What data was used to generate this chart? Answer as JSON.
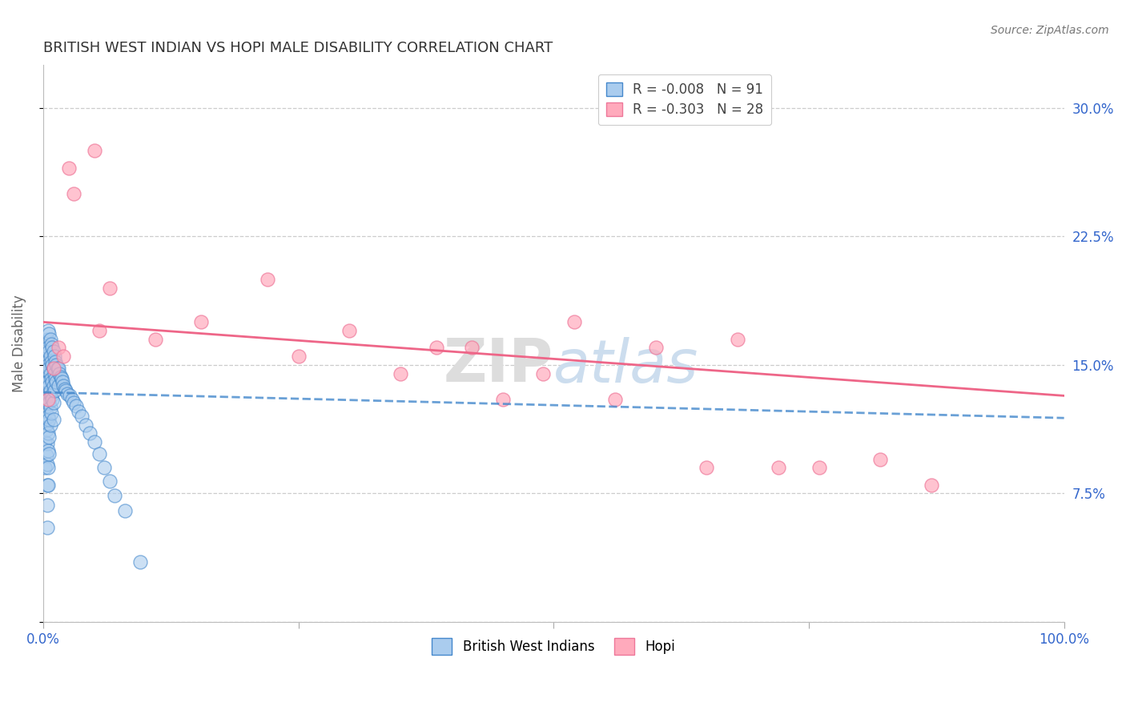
{
  "title": "BRITISH WEST INDIAN VS HOPI MALE DISABILITY CORRELATION CHART",
  "source": "Source: ZipAtlas.com",
  "ylabel": "Male Disability",
  "xlim": [
    0.0,
    1.0
  ],
  "ylim": [
    0.0,
    0.325
  ],
  "yticks": [
    0.0,
    0.075,
    0.15,
    0.225,
    0.3
  ],
  "ytick_labels": [
    "",
    "7.5%",
    "15.0%",
    "22.5%",
    "30.0%"
  ],
  "xticks": [
    0.0,
    0.25,
    0.5,
    0.75,
    1.0
  ],
  "xtick_labels": [
    "0.0%",
    "",
    "",
    "",
    "100.0%"
  ],
  "r_blue": -0.008,
  "n_blue": 91,
  "r_pink": -0.303,
  "n_pink": 28,
  "blue_color": "#aaccee",
  "blue_edge_color": "#4488cc",
  "pink_color": "#ffaabc",
  "pink_edge_color": "#ee7799",
  "blue_line_color": "#4488cc",
  "pink_line_color": "#ee6688",
  "title_color": "#333333",
  "axis_color": "#3366cc",
  "source_color": "#777777",
  "grid_color": "#cccccc",
  "legend_labels_top": [
    "R = -0.008   N = 91",
    "R = -0.303   N = 28"
  ],
  "legend_labels_bottom": [
    "British West Indians",
    "Hopi"
  ],
  "blue_x": [
    0.002,
    0.002,
    0.002,
    0.002,
    0.002,
    0.003,
    0.003,
    0.003,
    0.003,
    0.003,
    0.004,
    0.004,
    0.004,
    0.004,
    0.004,
    0.004,
    0.004,
    0.004,
    0.004,
    0.004,
    0.005,
    0.005,
    0.005,
    0.005,
    0.005,
    0.005,
    0.005,
    0.005,
    0.005,
    0.005,
    0.006,
    0.006,
    0.006,
    0.006,
    0.006,
    0.006,
    0.006,
    0.006,
    0.007,
    0.007,
    0.007,
    0.007,
    0.007,
    0.007,
    0.008,
    0.008,
    0.008,
    0.008,
    0.008,
    0.009,
    0.009,
    0.009,
    0.009,
    0.01,
    0.01,
    0.01,
    0.01,
    0.01,
    0.011,
    0.011,
    0.011,
    0.012,
    0.012,
    0.013,
    0.013,
    0.014,
    0.015,
    0.015,
    0.016,
    0.017,
    0.018,
    0.019,
    0.02,
    0.021,
    0.022,
    0.024,
    0.026,
    0.028,
    0.03,
    0.032,
    0.035,
    0.038,
    0.042,
    0.046,
    0.05,
    0.055,
    0.06,
    0.065,
    0.07,
    0.08,
    0.095
  ],
  "blue_y": [
    0.145,
    0.132,
    0.118,
    0.105,
    0.09,
    0.155,
    0.14,
    0.126,
    0.112,
    0.097,
    0.165,
    0.152,
    0.14,
    0.128,
    0.116,
    0.104,
    0.092,
    0.08,
    0.068,
    0.055,
    0.17,
    0.16,
    0.15,
    0.14,
    0.13,
    0.12,
    0.11,
    0.1,
    0.09,
    0.08,
    0.168,
    0.158,
    0.148,
    0.138,
    0.128,
    0.118,
    0.108,
    0.098,
    0.165,
    0.155,
    0.145,
    0.135,
    0.125,
    0.115,
    0.162,
    0.152,
    0.142,
    0.132,
    0.122,
    0.16,
    0.15,
    0.14,
    0.13,
    0.158,
    0.148,
    0.138,
    0.128,
    0.118,
    0.155,
    0.145,
    0.135,
    0.152,
    0.142,
    0.15,
    0.14,
    0.148,
    0.148,
    0.138,
    0.145,
    0.143,
    0.142,
    0.14,
    0.138,
    0.136,
    0.135,
    0.133,
    0.132,
    0.13,
    0.128,
    0.126,
    0.123,
    0.12,
    0.115,
    0.11,
    0.105,
    0.098,
    0.09,
    0.082,
    0.074,
    0.065,
    0.035
  ],
  "pink_x": [
    0.005,
    0.01,
    0.015,
    0.02,
    0.025,
    0.03,
    0.05,
    0.055,
    0.065,
    0.11,
    0.155,
    0.22,
    0.25,
    0.3,
    0.35,
    0.385,
    0.42,
    0.45,
    0.49,
    0.52,
    0.56,
    0.6,
    0.65,
    0.68,
    0.72,
    0.76,
    0.82,
    0.87
  ],
  "pink_y": [
    0.13,
    0.148,
    0.16,
    0.155,
    0.265,
    0.25,
    0.275,
    0.17,
    0.195,
    0.165,
    0.175,
    0.2,
    0.155,
    0.17,
    0.145,
    0.16,
    0.16,
    0.13,
    0.145,
    0.175,
    0.13,
    0.16,
    0.09,
    0.165,
    0.09,
    0.09,
    0.095,
    0.08
  ],
  "pink_line_start_y": 0.175,
  "pink_line_end_y": 0.132,
  "blue_line_start_y": 0.134,
  "blue_line_end_y": 0.119
}
